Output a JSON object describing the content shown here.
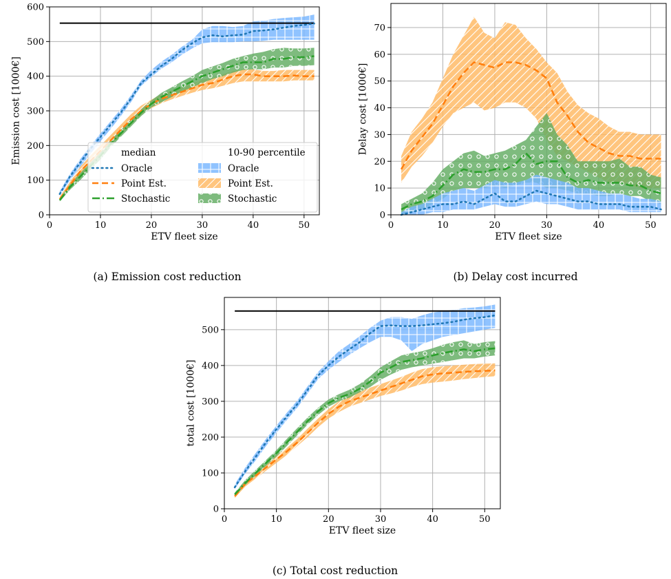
{
  "chart_data": [
    {
      "type": "line",
      "caption": "(a) Emission cost reduction",
      "xlabel": "ETV fleet size",
      "ylabel": "Emission cost [1000€]",
      "xlim": [
        0,
        53
      ],
      "ylim": [
        0,
        600
      ],
      "xticks": [
        0,
        10,
        20,
        30,
        40,
        50
      ],
      "yticks": [
        0,
        100,
        200,
        300,
        400,
        500,
        600
      ],
      "grid": true,
      "legend": {
        "placement": "lower-right",
        "median_title": "median",
        "band_title": "10-90 percentile",
        "entries": [
          "Oracle",
          "Point Est.",
          "Stochastic"
        ]
      },
      "x": [
        2,
        4,
        6,
        8,
        10,
        12,
        14,
        16,
        18,
        20,
        22,
        24,
        26,
        28,
        30,
        32,
        34,
        36,
        38,
        40,
        42,
        44,
        46,
        48,
        50,
        52
      ],
      "reference_line": {
        "value": 553,
        "x_range": [
          2,
          52
        ]
      },
      "series": [
        {
          "name": "Oracle",
          "color": "#1f77b4",
          "band_color": "#78b6ff",
          "hatch": "grid",
          "median": [
            60,
            110,
            150,
            190,
            225,
            260,
            295,
            335,
            380,
            405,
            430,
            450,
            475,
            495,
            512,
            518,
            515,
            518,
            520,
            530,
            532,
            535,
            540,
            545,
            548,
            552
          ],
          "p10": [
            55,
            100,
            138,
            175,
            212,
            248,
            285,
            325,
            372,
            398,
            422,
            440,
            462,
            480,
            495,
            498,
            498,
            498,
            500,
            500,
            502,
            505,
            505,
            505,
            505,
            505
          ],
          "p90": [
            68,
            118,
            160,
            198,
            235,
            270,
            305,
            345,
            388,
            418,
            442,
            462,
            485,
            505,
            535,
            545,
            545,
            542,
            545,
            558,
            560,
            565,
            568,
            570,
            572,
            578
          ]
        },
        {
          "name": "Point Est.",
          "color": "#ff7f0e",
          "band_color": "#ffb861",
          "hatch": "diagonal",
          "median": [
            45,
            85,
            125,
            155,
            185,
            215,
            245,
            275,
            300,
            320,
            335,
            345,
            355,
            365,
            375,
            380,
            390,
            400,
            405,
            405,
            400,
            400,
            400,
            402,
            400,
            400
          ],
          "p10": [
            40,
            75,
            110,
            140,
            170,
            200,
            230,
            260,
            288,
            308,
            322,
            333,
            343,
            352,
            360,
            365,
            372,
            380,
            385,
            385,
            385,
            385,
            385,
            388,
            388,
            388
          ],
          "p90": [
            52,
            95,
            138,
            170,
            200,
            230,
            260,
            290,
            315,
            332,
            348,
            358,
            368,
            378,
            390,
            395,
            405,
            415,
            420,
            420,
            415,
            415,
            418,
            418,
            418,
            418
          ]
        },
        {
          "name": "Stochastic",
          "color": "#2ca02c",
          "band_color": "#62ac62",
          "hatch": "circles",
          "median": [
            42,
            80,
            110,
            140,
            170,
            205,
            235,
            265,
            295,
            320,
            340,
            355,
            370,
            385,
            400,
            410,
            420,
            430,
            440,
            440,
            440,
            450,
            450,
            455,
            455,
            458
          ],
          "p10": [
            38,
            72,
            100,
            130,
            160,
            195,
            225,
            255,
            285,
            310,
            325,
            340,
            355,
            368,
            380,
            392,
            400,
            410,
            418,
            420,
            420,
            425,
            425,
            430,
            430,
            432
          ],
          "p90": [
            48,
            88,
            120,
            150,
            180,
            215,
            245,
            275,
            305,
            330,
            352,
            368,
            385,
            400,
            418,
            428,
            438,
            450,
            458,
            465,
            470,
            478,
            482,
            480,
            480,
            482
          ]
        }
      ]
    },
    {
      "type": "line",
      "caption": "(b) Delay cost incurred",
      "xlabel": "ETV fleet size",
      "ylabel": "Delay cost [1000€]",
      "xlim": [
        0,
        53
      ],
      "ylim": [
        0,
        79
      ],
      "xticks": [
        0,
        10,
        20,
        30,
        40,
        50
      ],
      "yticks": [
        0,
        10,
        20,
        30,
        40,
        50,
        60,
        70
      ],
      "grid": true,
      "x": [
        2,
        4,
        6,
        8,
        10,
        12,
        14,
        16,
        18,
        20,
        22,
        24,
        26,
        28,
        30,
        32,
        34,
        36,
        38,
        40,
        42,
        44,
        46,
        48,
        50,
        52
      ],
      "series": [
        {
          "name": "Oracle",
          "color": "#1f77b4",
          "band_color": "#78b6ff",
          "hatch": "grid",
          "median": [
            0,
            1,
            2,
            3,
            4,
            4,
            5,
            4,
            6,
            8,
            5,
            5,
            7,
            9,
            8,
            7,
            6,
            5,
            5,
            4,
            4,
            4,
            3,
            3,
            3,
            2
          ],
          "p10": [
            0,
            0,
            0,
            1,
            1,
            2,
            2,
            2,
            3,
            4,
            3,
            3,
            4,
            5,
            4,
            4,
            3,
            2,
            2,
            2,
            2,
            2,
            1,
            1,
            1,
            1
          ],
          "p90": [
            1,
            3,
            4,
            6,
            8,
            9,
            10,
            9,
            11,
            13,
            12,
            12,
            13,
            15,
            14,
            13,
            12,
            10,
            10,
            9,
            8,
            8,
            7,
            6,
            6,
            5
          ]
        },
        {
          "name": "Point Est.",
          "color": "#ff7f0e",
          "band_color": "#ffb861",
          "hatch": "diagonal",
          "median": [
            17,
            24,
            29,
            34,
            41,
            48,
            53,
            57,
            56,
            55,
            57,
            57,
            56,
            54,
            51,
            42,
            37,
            31,
            27,
            25,
            23,
            22,
            22,
            21,
            21,
            21
          ],
          "p10": [
            12,
            18,
            22,
            27,
            33,
            38,
            40,
            42,
            39,
            40,
            42,
            42,
            40,
            36,
            28,
            22,
            20,
            18,
            16,
            14,
            12,
            12,
            11,
            10,
            10,
            10
          ],
          "p90": [
            22,
            31,
            36,
            42,
            51,
            60,
            67,
            74,
            68,
            66,
            72,
            71,
            66,
            62,
            57,
            53,
            46,
            41,
            38,
            36,
            33,
            31,
            31,
            30,
            30,
            30
          ]
        },
        {
          "name": "Stochastic",
          "color": "#2ca02c",
          "band_color": "#62ac62",
          "hatch": "circles",
          "median": [
            2,
            4,
            5,
            7,
            11,
            15,
            17,
            16,
            16,
            17,
            17,
            19,
            23,
            19,
            20,
            20,
            14,
            12,
            13,
            12,
            12,
            12,
            11,
            11,
            9,
            8
          ],
          "p10": [
            0,
            1,
            2,
            4,
            6,
            9,
            10,
            10,
            10,
            11,
            10,
            11,
            12,
            12,
            10,
            10,
            9,
            8,
            8,
            7,
            7,
            8,
            7,
            7,
            5,
            4
          ],
          "p90": [
            4,
            6,
            8,
            12,
            17,
            20,
            23,
            24,
            22,
            23,
            24,
            26,
            28,
            33,
            38,
            30,
            26,
            20,
            20,
            20,
            20,
            21,
            18,
            18,
            15,
            14
          ]
        }
      ]
    },
    {
      "type": "line",
      "caption": "(c) Total cost reduction",
      "xlabel": "ETV fleet size",
      "ylabel": "total cost [1000€]",
      "xlim": [
        0,
        53
      ],
      "ylim": [
        0,
        590
      ],
      "xticks": [
        0,
        10,
        20,
        30,
        40,
        50
      ],
      "yticks": [
        0,
        100,
        200,
        300,
        400,
        500
      ],
      "grid": true,
      "x": [
        2,
        4,
        6,
        8,
        10,
        12,
        14,
        16,
        18,
        20,
        22,
        24,
        26,
        28,
        30,
        32,
        34,
        36,
        38,
        40,
        42,
        44,
        46,
        48,
        50,
        52
      ],
      "reference_line": {
        "value": 552,
        "x_range": [
          2,
          52
        ]
      },
      "series": [
        {
          "name": "Oracle",
          "color": "#1f77b4",
          "band_color": "#78b6ff",
          "hatch": "grid",
          "median": [
            60,
            105,
            145,
            185,
            222,
            258,
            292,
            332,
            372,
            400,
            425,
            445,
            465,
            490,
            510,
            512,
            510,
            510,
            512,
            515,
            518,
            522,
            528,
            532,
            535,
            540
          ],
          "p10": [
            55,
            98,
            135,
            175,
            212,
            248,
            282,
            322,
            362,
            388,
            410,
            430,
            448,
            465,
            480,
            480,
            470,
            440,
            460,
            470,
            480,
            485,
            490,
            495,
            500,
            505
          ],
          "p90": [
            68,
            115,
            155,
            195,
            232,
            268,
            302,
            342,
            382,
            412,
            440,
            460,
            482,
            505,
            525,
            535,
            535,
            530,
            540,
            548,
            552,
            555,
            560,
            562,
            565,
            570
          ]
        },
        {
          "name": "Point Est.",
          "color": "#ff7f0e",
          "band_color": "#ffb861",
          "hatch": "diagonal",
          "median": [
            35,
            70,
            92,
            115,
            138,
            160,
            185,
            212,
            240,
            265,
            285,
            300,
            310,
            320,
            330,
            340,
            350,
            360,
            370,
            375,
            378,
            380,
            382,
            384,
            385,
            386
          ],
          "p10": [
            30,
            62,
            84,
            106,
            128,
            150,
            175,
            200,
            228,
            252,
            270,
            285,
            295,
            305,
            315,
            322,
            330,
            340,
            348,
            352,
            355,
            358,
            362,
            365,
            368,
            370
          ],
          "p90": [
            40,
            78,
            100,
            124,
            148,
            170,
            195,
            224,
            252,
            278,
            300,
            315,
            328,
            338,
            348,
            358,
            368,
            380,
            390,
            395,
            398,
            400,
            402,
            404,
            405,
            406
          ]
        },
        {
          "name": "Stochastic",
          "color": "#2ca02c",
          "band_color": "#62ac62",
          "hatch": "circles",
          "median": [
            40,
            72,
            100,
            128,
            155,
            185,
            215,
            245,
            272,
            295,
            310,
            320,
            335,
            355,
            380,
            395,
            410,
            415,
            420,
            428,
            435,
            440,
            445,
            440,
            445,
            448
          ],
          "p10": [
            35,
            66,
            92,
            120,
            146,
            175,
            205,
            235,
            262,
            285,
            300,
            310,
            325,
            340,
            360,
            375,
            388,
            395,
            400,
            405,
            410,
            415,
            420,
            420,
            425,
            428
          ],
          "p90": [
            45,
            80,
            108,
            136,
            164,
            195,
            225,
            255,
            282,
            305,
            320,
            332,
            348,
            370,
            395,
            412,
            428,
            435,
            440,
            448,
            458,
            465,
            470,
            460,
            465,
            468
          ]
        }
      ]
    }
  ]
}
